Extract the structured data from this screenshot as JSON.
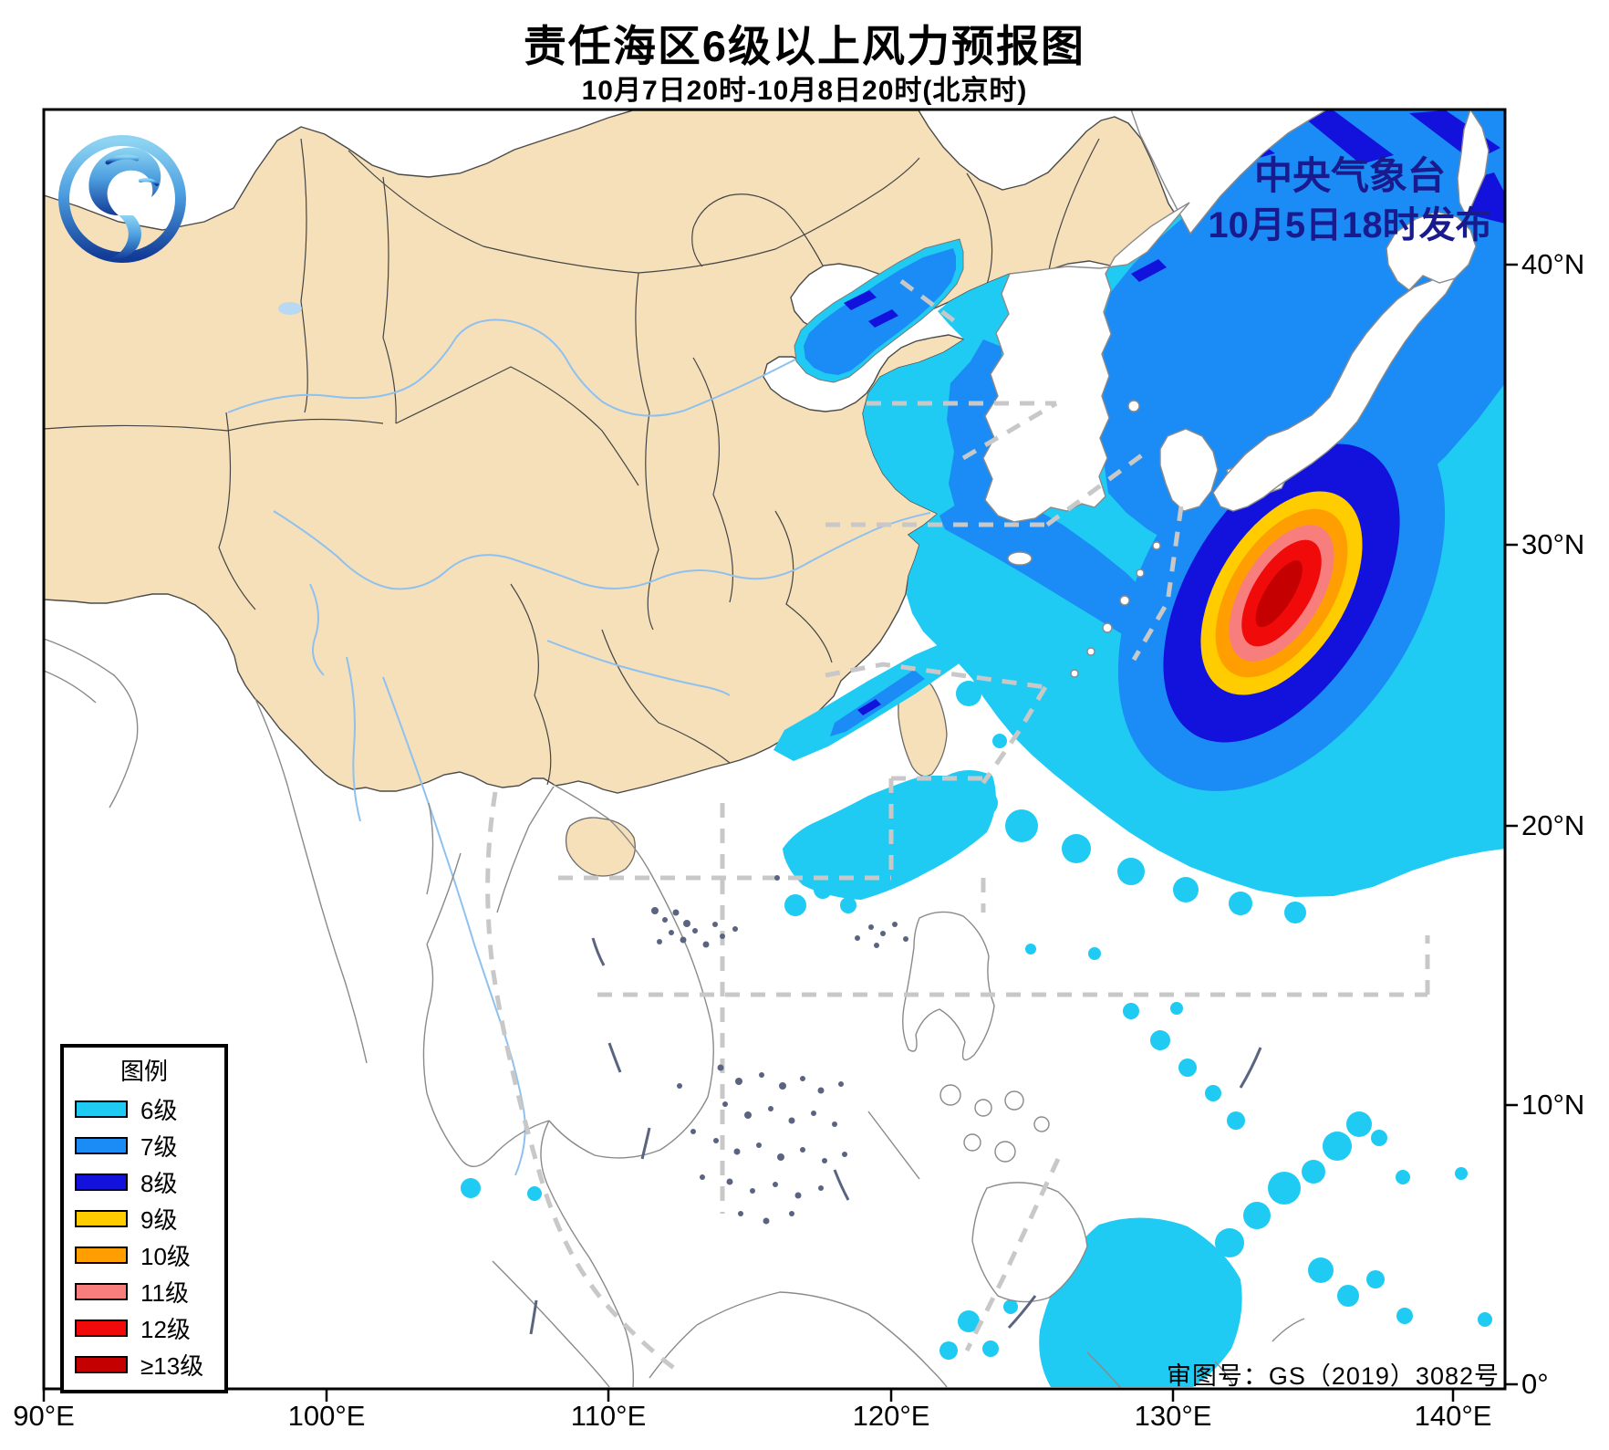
{
  "header": {
    "title": "责任海区6级以上风力预报图",
    "subtitle": "10月7日20时-10月8日20时(北京时)"
  },
  "publisher": {
    "line1": "中央气象台",
    "line2": "10月5日18时发布"
  },
  "legend": {
    "title": "图例",
    "items": [
      {
        "label": "6级",
        "color": "#1FCBF2"
      },
      {
        "label": "7级",
        "color": "#1B8CF5"
      },
      {
        "label": "8级",
        "color": "#1212DC"
      },
      {
        "label": "9级",
        "color": "#FFCC00"
      },
      {
        "label": "10级",
        "color": "#FF9E00"
      },
      {
        "label": "11级",
        "color": "#F87D7D"
      },
      {
        "label": "12级",
        "color": "#F00A0A"
      },
      {
        "label": "≥13级",
        "color": "#C40000"
      }
    ]
  },
  "map_note": "审图号：GS（2019）3082号",
  "axes": {
    "x_ticks": [
      "90°E",
      "100°E",
      "110°E",
      "120°E",
      "130°E",
      "140°E"
    ],
    "y_ticks": [
      "40°N",
      "30°N",
      "20°N",
      "10°N",
      "0°"
    ]
  },
  "colors": {
    "land_china": "#F6E0B9",
    "sea": "#FFFFFF",
    "publisher_text": "#1A1A8F",
    "dashed_boundary": "#C8C8C8"
  }
}
